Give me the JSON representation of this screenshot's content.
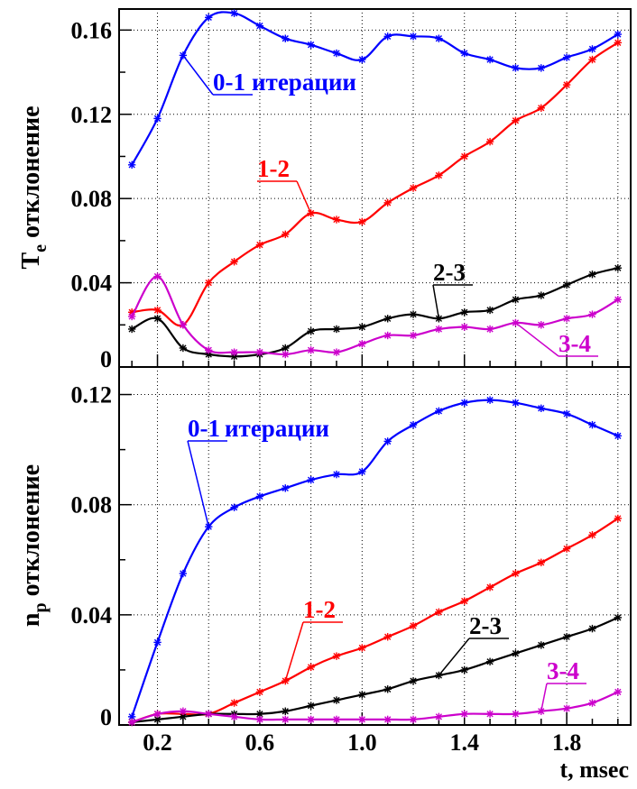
{
  "chart_data": [
    {
      "type": "line",
      "ylabel": "T",
      "ylabel_sub": "e",
      "ylabel_rest": " отклонение",
      "xlabel": "",
      "xlim": [
        0.05,
        2.05
      ],
      "ylim": [
        0,
        0.17
      ],
      "grid": true,
      "yticks": [
        0,
        0.04,
        0.08,
        0.12,
        0.16
      ],
      "ytick_labels": [
        "0",
        "0.04",
        "0.08",
        "0.12",
        "0.16"
      ],
      "x": [
        0.1,
        0.2,
        0.3,
        0.4,
        0.5,
        0.6,
        0.7,
        0.8,
        0.9,
        1.0,
        1.1,
        1.2,
        1.3,
        1.4,
        1.5,
        1.6,
        1.7,
        1.8,
        1.9,
        2.0
      ],
      "series": [
        {
          "name": "0-1 итерации",
          "color": "#0000ff",
          "values": [
            0.096,
            0.118,
            0.148,
            0.166,
            0.168,
            0.162,
            0.156,
            0.153,
            0.149,
            0.146,
            0.157,
            0.157,
            0.156,
            0.149,
            0.146,
            0.142,
            0.142,
            0.147,
            0.151,
            0.158
          ]
        },
        {
          "name": "1-2",
          "color": "#ff0000",
          "values": [
            0.026,
            0.027,
            0.02,
            0.04,
            0.05,
            0.058,
            0.063,
            0.073,
            0.07,
            0.069,
            0.078,
            0.085,
            0.091,
            0.1,
            0.107,
            0.117,
            0.123,
            0.134,
            0.146,
            0.154
          ]
        },
        {
          "name": "2-3",
          "color": "#000000",
          "values": [
            0.018,
            0.023,
            0.009,
            0.006,
            0.005,
            0.006,
            0.009,
            0.017,
            0.018,
            0.019,
            0.023,
            0.025,
            0.023,
            0.026,
            0.027,
            0.032,
            0.034,
            0.039,
            0.044,
            0.047
          ]
        },
        {
          "name": "3-4",
          "color": "#cc00cc",
          "values": [
            0.024,
            0.043,
            0.02,
            0.008,
            0.007,
            0.007,
            0.006,
            0.008,
            0.007,
            0.011,
            0.015,
            0.015,
            0.018,
            0.019,
            0.018,
            0.021,
            0.02,
            0.023,
            0.025,
            0.032
          ]
        }
      ],
      "annotations": [
        {
          "text": "0-1",
          "series": "0-1 итерации",
          "at_x": 0.3,
          "color": "#0000ff"
        },
        {
          "text": " итерации",
          "series": "0-1 итерации",
          "color": "#0000ff"
        },
        {
          "text": "1-2",
          "series": "1-2",
          "at_x": 0.8,
          "color": "#ff0000"
        },
        {
          "text": "2-3",
          "series": "2-3",
          "at_x": 1.3,
          "color": "#000000"
        },
        {
          "text": "3-4",
          "series": "3-4",
          "at_x": 1.6,
          "color": "#cc00cc"
        }
      ]
    },
    {
      "type": "line",
      "ylabel": "n",
      "ylabel_sub": "p",
      "ylabel_rest": " отклонение",
      "xlabel": "t, msec",
      "xlim": [
        0.05,
        2.05
      ],
      "ylim": [
        0,
        0.13
      ],
      "grid": true,
      "yticks": [
        0,
        0.04,
        0.08,
        0.12
      ],
      "ytick_labels": [
        "0",
        "0.04",
        "0.08",
        "0.12"
      ],
      "xticks": [
        0.2,
        0.6,
        1.0,
        1.4,
        1.8
      ],
      "xtick_labels": [
        "0.2",
        "0.6",
        "1.0",
        "1.4",
        "1.8"
      ],
      "x": [
        0.1,
        0.2,
        0.3,
        0.4,
        0.5,
        0.6,
        0.7,
        0.8,
        0.9,
        1.0,
        1.1,
        1.2,
        1.3,
        1.4,
        1.5,
        1.6,
        1.7,
        1.8,
        1.9,
        2.0
      ],
      "series": [
        {
          "name": "0-1 итерации",
          "color": "#0000ff",
          "values": [
            0.003,
            0.03,
            0.055,
            0.072,
            0.079,
            0.083,
            0.086,
            0.089,
            0.091,
            0.092,
            0.103,
            0.109,
            0.114,
            0.117,
            0.118,
            0.117,
            0.115,
            0.113,
            0.109,
            0.105
          ]
        },
        {
          "name": "1-2",
          "color": "#ff0000",
          "values": [
            0.001,
            0.004,
            0.004,
            0.004,
            0.008,
            0.012,
            0.016,
            0.021,
            0.025,
            0.028,
            0.032,
            0.036,
            0.041,
            0.045,
            0.05,
            0.055,
            0.059,
            0.064,
            0.069,
            0.075
          ]
        },
        {
          "name": "2-3",
          "color": "#000000",
          "values": [
            0.001,
            0.002,
            0.003,
            0.004,
            0.004,
            0.004,
            0.005,
            0.007,
            0.009,
            0.011,
            0.013,
            0.016,
            0.018,
            0.02,
            0.023,
            0.026,
            0.029,
            0.032,
            0.035,
            0.039
          ]
        },
        {
          "name": "3-4",
          "color": "#cc00cc",
          "values": [
            0.001,
            0.004,
            0.005,
            0.004,
            0.003,
            0.002,
            0.002,
            0.002,
            0.002,
            0.002,
            0.002,
            0.002,
            0.003,
            0.004,
            0.004,
            0.004,
            0.005,
            0.006,
            0.008,
            0.012
          ]
        }
      ],
      "annotations": [
        {
          "text": "0-1",
          "series": "0-1 итерации",
          "at_x": 0.4,
          "color": "#0000ff"
        },
        {
          "text": " итерации",
          "series": "0-1 итерации",
          "color": "#0000ff"
        },
        {
          "text": "1-2",
          "series": "1-2",
          "at_x": 0.7,
          "color": "#ff0000"
        },
        {
          "text": "2-3",
          "series": "2-3",
          "at_x": 1.3,
          "color": "#000000"
        },
        {
          "text": "3-4",
          "series": "3-4",
          "at_x": 1.7,
          "color": "#cc00cc"
        }
      ]
    }
  ]
}
